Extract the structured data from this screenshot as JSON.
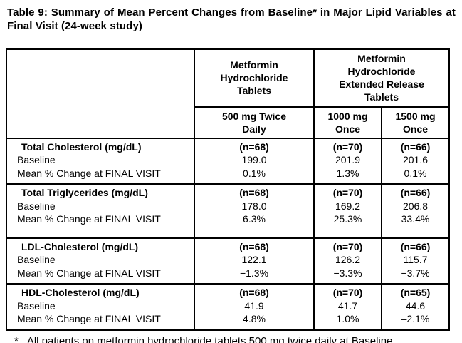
{
  "title": "Table 9: Summary of Mean Percent Changes from Baseline* in Major Lipid Variables at Final Visit (24-week study)",
  "table": {
    "col_headers": {
      "product_immediate": "Metformin\nHydrochloride\nTablets",
      "product_extended": "Metformin\nHydrochloride\nExtended Release\nTablets",
      "dose_500": "500 mg Twice\nDaily",
      "dose_1000": "1000 mg\nOnce",
      "dose_1500": "1500 mg\nOnce"
    },
    "row_labels": {
      "baseline": "Baseline",
      "mean_change": "Mean % Change at FINAL VISIT"
    },
    "groups": [
      {
        "label": "Total Cholesterol (mg/dL)",
        "n": [
          "(n=68)",
          "(n=70)",
          "(n=66)"
        ],
        "baseline": [
          "199.0",
          "201.9",
          "201.6"
        ],
        "mean_change": [
          "0.1%",
          "1.3%",
          "0.1%"
        ]
      },
      {
        "label": "Total Triglycerides (mg/dL)",
        "n": [
          "(n=68)",
          "(n=70)",
          "(n=66)"
        ],
        "baseline": [
          "178.0",
          "169.2",
          "206.8"
        ],
        "mean_change": [
          "6.3%",
          "25.3%",
          "33.4%"
        ]
      },
      {
        "label": "LDL-Cholesterol (mg/dL)",
        "n": [
          "(n=68)",
          "(n=70)",
          "(n=66)"
        ],
        "baseline": [
          "122.1",
          "126.2",
          "115.7"
        ],
        "mean_change": [
          "−1.3%",
          "−3.3%",
          "−3.7%"
        ]
      },
      {
        "label": "HDL-Cholesterol (mg/dL)",
        "n": [
          "(n=68)",
          "(n=70)",
          "(n=65)"
        ],
        "baseline": [
          "41.9",
          "41.7",
          "44.6"
        ],
        "mean_change": [
          "4.8%",
          "1.0%",
          "–2.1%"
        ]
      }
    ]
  },
  "footnote": {
    "marker": "*",
    "text": "All patients on metformin hydrochloride tablets 500 mg twice daily at Baseline"
  },
  "colors": {
    "background": "#ffffff",
    "text": "#000000",
    "border": "#000000"
  }
}
